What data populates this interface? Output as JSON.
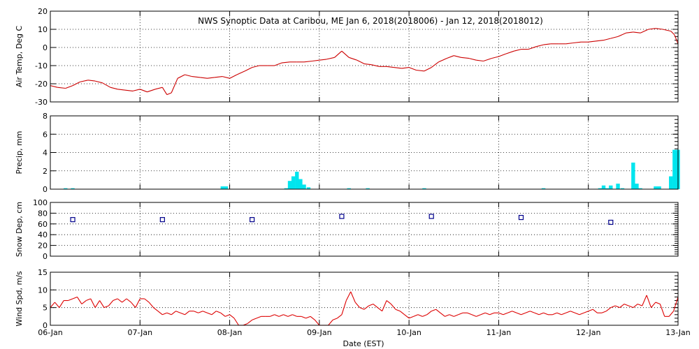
{
  "chart_data": {
    "title": "NWS Synoptic Data at Caribou, ME   Jan  6, 2018(2018006) - Jan 12, 2018(2018012)",
    "xlabel": "Date (EST)",
    "x_tick_labels": [
      "06-Jan",
      "07-Jan",
      "08-Jan",
      "09-Jan",
      "10-Jan",
      "11-Jan",
      "12-Jan",
      "13-Jan"
    ],
    "xlim": [
      0,
      7
    ],
    "x_units": "days since 06-Jan 00:00 EST",
    "colors": {
      "temp": "#cc0000",
      "precip": "#00e5ee",
      "snow": "#00008b",
      "wind": "#dd0000"
    },
    "panels": [
      {
        "id": "temp",
        "type": "line",
        "ylabel": "Air Temp, Deg C",
        "ylim": [
          -30,
          20
        ],
        "yticks": [
          -30,
          -20,
          -10,
          0,
          10,
          20
        ],
        "grid": true,
        "x": [
          0.0,
          0.08,
          0.17,
          0.25,
          0.33,
          0.42,
          0.5,
          0.58,
          0.67,
          0.75,
          0.83,
          0.92,
          1.0,
          1.08,
          1.17,
          1.25,
          1.3,
          1.35,
          1.42,
          1.5,
          1.58,
          1.67,
          1.75,
          1.83,
          1.92,
          2.0,
          2.08,
          2.17,
          2.25,
          2.33,
          2.42,
          2.5,
          2.58,
          2.67,
          2.75,
          2.83,
          2.92,
          3.0,
          3.08,
          3.17,
          3.25,
          3.33,
          3.42,
          3.46,
          3.5,
          3.58,
          3.67,
          3.75,
          3.83,
          3.92,
          4.0,
          4.08,
          4.17,
          4.25,
          4.33,
          4.42,
          4.5,
          4.58,
          4.67,
          4.75,
          4.83,
          4.92,
          5.0,
          5.08,
          5.17,
          5.25,
          5.33,
          5.42,
          5.5,
          5.58,
          5.67,
          5.75,
          5.83,
          5.92,
          6.0,
          6.08,
          6.17,
          6.25,
          6.33,
          6.42,
          6.5,
          6.58,
          6.67,
          6.75,
          6.83,
          6.92,
          6.96,
          7.0
        ],
        "values": [
          -21,
          -22,
          -22.5,
          -21,
          -19,
          -18,
          -18.5,
          -19.5,
          -22,
          -23,
          -23.5,
          -24,
          -23,
          -24.5,
          -23,
          -22,
          -26,
          -25,
          -17,
          -15,
          -16,
          -16.5,
          -17,
          -16.5,
          -16,
          -17,
          -15,
          -13,
          -11,
          -10,
          -10,
          -10,
          -8.5,
          -8,
          -8,
          -8,
          -7.5,
          -7,
          -6.5,
          -5.5,
          -2,
          -5.5,
          -7,
          -8,
          -9,
          -9.5,
          -10.5,
          -10.5,
          -11,
          -11.5,
          -11,
          -12.5,
          -13,
          -11,
          -8,
          -6,
          -4.5,
          -5.5,
          -6,
          -7,
          -7.5,
          -6,
          -5,
          -3.5,
          -2,
          -1,
          -1,
          0.5,
          1.5,
          2,
          2,
          2,
          2.5,
          3,
          3,
          3.5,
          4,
          5,
          6,
          8,
          8.5,
          8,
          10,
          10.5,
          10,
          9,
          7,
          2
        ]
      },
      {
        "id": "precip",
        "type": "bar",
        "ylabel": "Precip, mm",
        "ylim": [
          0,
          8
        ],
        "yticks": [
          0,
          2,
          4,
          6,
          8
        ],
        "grid": true,
        "bar_width": 0.042,
        "x": [
          0.17,
          0.25,
          1.92,
          1.96,
          2.63,
          2.67,
          2.71,
          2.75,
          2.79,
          2.83,
          2.88,
          3.33,
          3.54,
          4.17,
          5.5,
          6.13,
          6.17,
          6.21,
          6.25,
          6.33,
          6.38,
          6.5,
          6.54,
          6.58,
          6.75,
          6.79,
          6.92,
          6.96,
          7.0
        ],
        "values": [
          0.1,
          0.1,
          0.3,
          0.3,
          0.1,
          0.9,
          1.4,
          1.9,
          1.1,
          0.5,
          0.2,
          0.1,
          0.1,
          0.1,
          0.1,
          0.1,
          0.4,
          0.1,
          0.4,
          0.6,
          0.1,
          2.9,
          0.6,
          0.1,
          0.3,
          0.3,
          1.4,
          4.3,
          4.3
        ]
      },
      {
        "id": "snow",
        "type": "scatter",
        "ylabel": "Snow Dep, cm",
        "ylim": [
          0,
          100
        ],
        "yticks": [
          0,
          20,
          40,
          60,
          80,
          100
        ],
        "grid": true,
        "x": [
          0.25,
          1.25,
          2.25,
          3.25,
          4.25,
          5.25,
          6.25
        ],
        "values": [
          68,
          68,
          68,
          74,
          74,
          72,
          63
        ]
      },
      {
        "id": "wind",
        "type": "line",
        "ylabel": "Wind Spd, m/s",
        "ylim": [
          0,
          15
        ],
        "yticks": [
          0,
          5,
          10,
          15
        ],
        "grid": true,
        "x": [
          0.0,
          0.05,
          0.1,
          0.15,
          0.2,
          0.25,
          0.3,
          0.35,
          0.4,
          0.45,
          0.5,
          0.55,
          0.6,
          0.65,
          0.7,
          0.75,
          0.8,
          0.85,
          0.9,
          0.95,
          1.0,
          1.05,
          1.1,
          1.15,
          1.2,
          1.25,
          1.3,
          1.35,
          1.4,
          1.45,
          1.5,
          1.55,
          1.6,
          1.65,
          1.7,
          1.75,
          1.8,
          1.85,
          1.9,
          1.95,
          2.0,
          2.05,
          2.1,
          2.15,
          2.2,
          2.25,
          2.3,
          2.35,
          2.4,
          2.45,
          2.5,
          2.55,
          2.6,
          2.65,
          2.7,
          2.75,
          2.8,
          2.85,
          2.9,
          2.95,
          3.0,
          3.05,
          3.1,
          3.15,
          3.2,
          3.25,
          3.3,
          3.35,
          3.4,
          3.45,
          3.5,
          3.55,
          3.6,
          3.65,
          3.7,
          3.75,
          3.8,
          3.85,
          3.9,
          3.95,
          4.0,
          4.05,
          4.1,
          4.15,
          4.2,
          4.25,
          4.3,
          4.35,
          4.4,
          4.45,
          4.5,
          4.55,
          4.6,
          4.65,
          4.7,
          4.75,
          4.8,
          4.85,
          4.9,
          4.95,
          5.0,
          5.05,
          5.1,
          5.15,
          5.2,
          5.25,
          5.3,
          5.35,
          5.4,
          5.45,
          5.5,
          5.55,
          5.6,
          5.65,
          5.7,
          5.75,
          5.8,
          5.85,
          5.9,
          5.95,
          6.0,
          6.05,
          6.1,
          6.15,
          6.2,
          6.25,
          6.3,
          6.35,
          6.4,
          6.45,
          6.5,
          6.55,
          6.6,
          6.65,
          6.7,
          6.75,
          6.8,
          6.85,
          6.9,
          6.95,
          7.0
        ],
        "values": [
          5,
          6.5,
          5,
          7,
          7,
          7.5,
          8,
          6,
          7,
          7.5,
          5,
          7,
          5,
          5.5,
          7,
          7.5,
          6.5,
          7.5,
          6.5,
          5,
          7.5,
          7.5,
          6.5,
          5,
          4,
          3,
          3.5,
          3,
          4,
          3.5,
          3,
          4,
          4,
          3.5,
          4,
          3.5,
          3,
          4,
          3.5,
          2.5,
          3,
          2,
          0,
          0,
          0.5,
          1.5,
          2,
          2.5,
          2.5,
          2.5,
          3,
          2.5,
          3,
          2.5,
          3,
          2.5,
          2.5,
          2,
          2.5,
          1.5,
          0,
          0,
          0,
          1.5,
          2,
          3,
          7,
          9.5,
          6.5,
          5,
          4.5,
          5.5,
          6,
          5,
          4,
          7,
          6,
          4.5,
          4,
          3,
          2,
          2.5,
          3,
          2.5,
          3,
          4,
          4.5,
          3.5,
          2.5,
          3,
          2.5,
          3,
          3.5,
          3.5,
          3,
          2.5,
          3,
          3.5,
          3,
          3.5,
          3.5,
          3,
          3.5,
          4,
          3.5,
          3,
          3.5,
          4,
          3.5,
          3,
          3.5,
          3,
          3,
          3.5,
          3,
          3.5,
          4,
          3.5,
          3,
          3.5,
          4,
          4.5,
          3.5,
          3.5,
          4,
          5,
          5.5,
          5,
          6,
          5.5,
          5,
          6,
          5.5,
          8.5,
          5,
          6.5,
          6,
          2.5,
          2.5,
          4,
          8
        ]
      }
    ]
  }
}
